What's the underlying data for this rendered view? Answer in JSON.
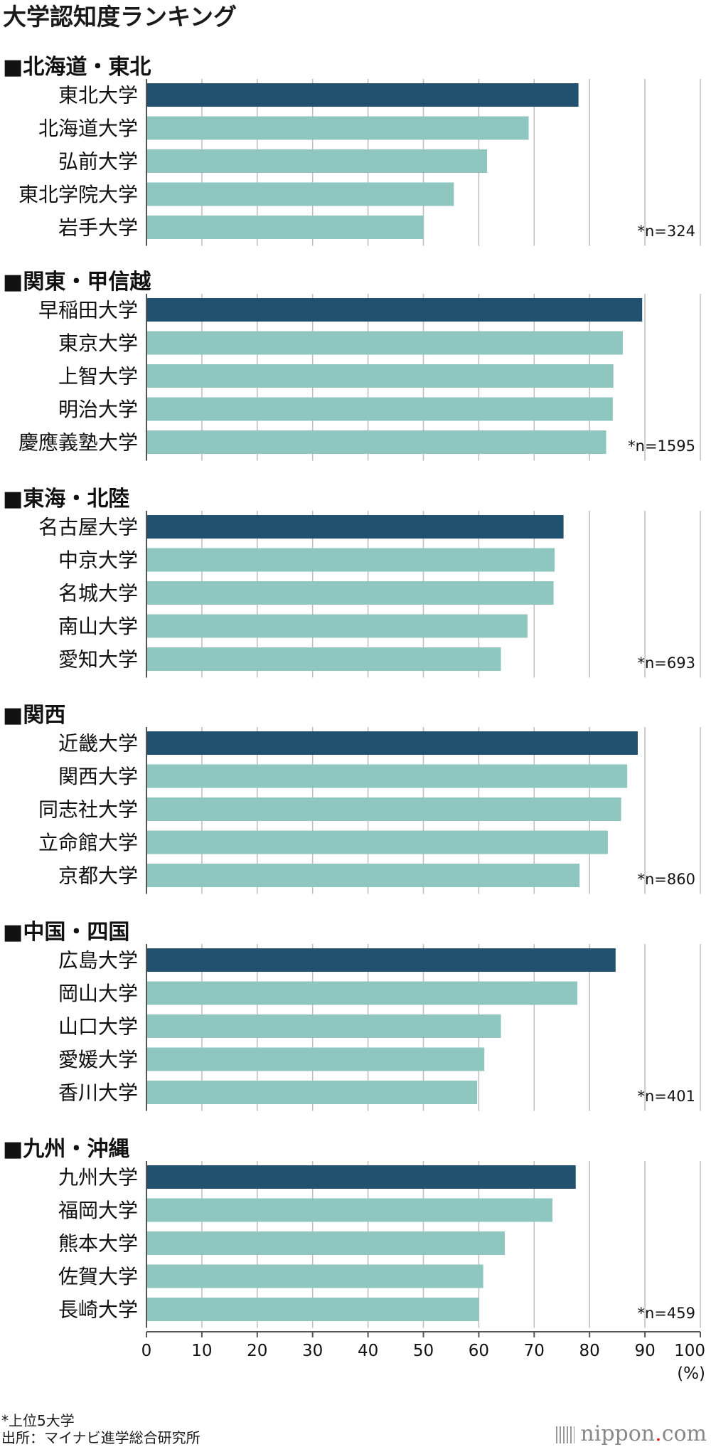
{
  "chart_data": {
    "type": "bar",
    "orientation": "horizontal",
    "title": "大学認知度ランキング",
    "unit_label": "(%)",
    "xlim": [
      0,
      100
    ],
    "x_ticks": [
      0,
      10,
      20,
      30,
      40,
      50,
      60,
      70,
      80,
      90,
      100
    ],
    "grid": true,
    "colors": {
      "top": "#22506f",
      "other": "#8fc7c0",
      "grid": "#bdbdbd",
      "axis": "#555555"
    },
    "groups": [
      {
        "region": "■北海道・東北",
        "n": "*n=324",
        "categories": [
          "東北大学",
          "北海道大学",
          "弘前大学",
          "東北学院大学",
          "岩手大学"
        ],
        "values": [
          78,
          69,
          61.5,
          55.5,
          50
        ]
      },
      {
        "region": "■関東・甲信越",
        "n": "*n=1595",
        "categories": [
          "早稲田大学",
          "東京大学",
          "上智大学",
          "明治大学",
          "慶應義塾大学"
        ],
        "values": [
          89.5,
          86,
          84.3,
          84.2,
          83
        ]
      },
      {
        "region": "■東海・北陸",
        "n": "*n=693",
        "categories": [
          "名古屋大学",
          "中京大学",
          "名城大学",
          "南山大学",
          "愛知大学"
        ],
        "values": [
          75.3,
          73.7,
          73.5,
          68.8,
          64
        ]
      },
      {
        "region": "■関西",
        "n": "*n=860",
        "categories": [
          "近畿大学",
          "関西大学",
          "同志社大学",
          "立命館大学",
          "京都大学"
        ],
        "values": [
          88.7,
          86.8,
          85.7,
          83.3,
          78.2
        ]
      },
      {
        "region": "■中国・四国",
        "n": "*n=401",
        "categories": [
          "広島大学",
          "岡山大学",
          "山口大学",
          "愛媛大学",
          "香川大学"
        ],
        "values": [
          84.7,
          77.8,
          64,
          61,
          59.7
        ]
      },
      {
        "region": "■九州・沖縄",
        "n": "*n=459",
        "categories": [
          "九州大学",
          "福岡大学",
          "熊本大学",
          "佐賀大学",
          "長崎大学"
        ],
        "values": [
          77.5,
          73.3,
          64.7,
          60.8,
          60
        ]
      }
    ]
  },
  "footnote": {
    "line1": "*上位5大学",
    "line2": "出所：マイナビ進学総合研究所"
  },
  "logo": {
    "text": "nippon",
    "dot": ".",
    "suffix": "com"
  }
}
